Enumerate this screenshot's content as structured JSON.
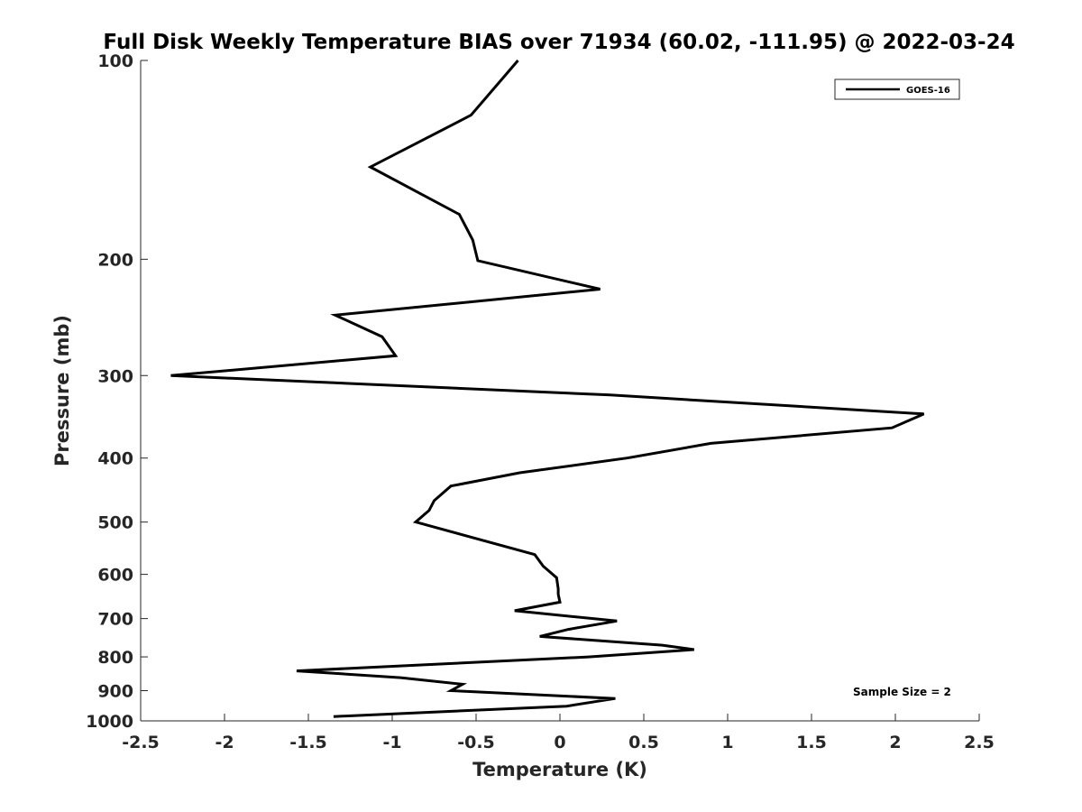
{
  "chart_data": {
    "type": "line",
    "title": "Full Disk Weekly Temperature BIAS over 71934 (60.02, -111.95) @ 2022-03-24",
    "xlabel": "Temperature (K)",
    "ylabel": "Pressure (mb)",
    "xlim": [
      -2.5,
      2.5
    ],
    "ylim": [
      100,
      1000
    ],
    "y_scale": "log",
    "y_reversed": true,
    "grid": false,
    "x_ticks": [
      -2.5,
      -2,
      -1.5,
      -1,
      -0.5,
      0,
      0.5,
      1,
      1.5,
      2,
      2.5
    ],
    "x_tick_labels": [
      "-2.5",
      "-2",
      "-1.5",
      "-1",
      "-0.5",
      "0",
      "0.5",
      "1",
      "1.5",
      "2",
      "2.5"
    ],
    "y_ticks": [
      100,
      200,
      300,
      400,
      500,
      600,
      700,
      800,
      900,
      1000
    ],
    "y_tick_labels": [
      "100",
      "200",
      "300",
      "400",
      "500",
      "600",
      "700",
      "800",
      "900",
      "1000"
    ],
    "legend": {
      "position": "top-right",
      "entries": [
        "GOES-16"
      ]
    },
    "annotation": "Sample Size = 2",
    "series": [
      {
        "name": "GOES-16",
        "color": "#000000",
        "points": [
          {
            "x": -0.25,
            "p": 100
          },
          {
            "x": -0.53,
            "p": 121
          },
          {
            "x": -1.13,
            "p": 145
          },
          {
            "x": -0.6,
            "p": 171
          },
          {
            "x": -0.52,
            "p": 187
          },
          {
            "x": -0.49,
            "p": 201
          },
          {
            "x": 0.24,
            "p": 222
          },
          {
            "x": -1.34,
            "p": 243
          },
          {
            "x": -1.06,
            "p": 262
          },
          {
            "x": -0.98,
            "p": 280
          },
          {
            "x": -2.32,
            "p": 300
          },
          {
            "x": 0.3,
            "p": 321
          },
          {
            "x": 2.17,
            "p": 343
          },
          {
            "x": 1.98,
            "p": 360
          },
          {
            "x": 0.9,
            "p": 380
          },
          {
            "x": 0.4,
            "p": 400
          },
          {
            "x": -0.24,
            "p": 421
          },
          {
            "x": -0.65,
            "p": 441
          },
          {
            "x": -0.75,
            "p": 464
          },
          {
            "x": -0.78,
            "p": 480
          },
          {
            "x": -0.86,
            "p": 500
          },
          {
            "x": -0.15,
            "p": 560
          },
          {
            "x": -0.1,
            "p": 583
          },
          {
            "x": -0.02,
            "p": 607
          },
          {
            "x": -0.01,
            "p": 631
          },
          {
            "x": -0.01,
            "p": 643
          },
          {
            "x": 0.0,
            "p": 661
          },
          {
            "x": -0.27,
            "p": 681
          },
          {
            "x": 0.34,
            "p": 706
          },
          {
            "x": 0.05,
            "p": 727
          },
          {
            "x": -0.12,
            "p": 745
          },
          {
            "x": 0.61,
            "p": 768
          },
          {
            "x": 0.8,
            "p": 780
          },
          {
            "x": 0.17,
            "p": 800
          },
          {
            "x": -1.57,
            "p": 840
          },
          {
            "x": -0.95,
            "p": 860
          },
          {
            "x": -0.58,
            "p": 880
          },
          {
            "x": -0.65,
            "p": 900
          },
          {
            "x": 0.33,
            "p": 925
          },
          {
            "x": 0.04,
            "p": 950
          },
          {
            "x": -1.35,
            "p": 985
          }
        ]
      }
    ]
  }
}
